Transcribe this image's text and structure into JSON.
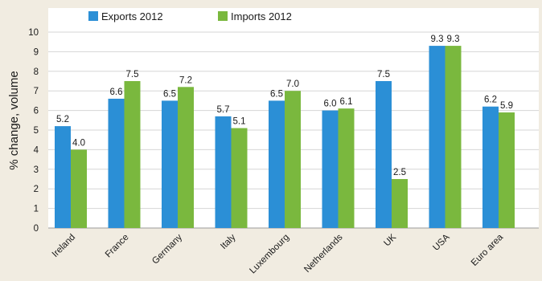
{
  "chart_data": {
    "type": "bar",
    "categories": [
      "Ireland",
      "France",
      "Germany",
      "Italy",
      "Luxembourg",
      "Netherlands",
      "UK",
      "USA",
      "Euro area"
    ],
    "series": [
      {
        "name": "Exports 2012",
        "color": "#2b8fd6",
        "values": [
          5.2,
          6.6,
          6.5,
          5.7,
          6.5,
          6.0,
          7.5,
          9.3,
          6.2
        ]
      },
      {
        "name": "Imports 2012",
        "color": "#7ab83e",
        "values": [
          4.0,
          7.5,
          7.2,
          5.1,
          7.0,
          6.1,
          2.5,
          9.3,
          5.9
        ]
      }
    ],
    "ylabel": "% change, volume",
    "xlabel": "",
    "ylim": [
      0,
      10
    ],
    "yticks": [
      0,
      1,
      2,
      3,
      4,
      5,
      6,
      7,
      8,
      9,
      10
    ],
    "grid": true,
    "legend": "top-left",
    "data_labels": true,
    "colors": {
      "plot_bg": "#ffffff",
      "page_bg": "#f1ece1",
      "grid": "#d6d6d6"
    }
  }
}
